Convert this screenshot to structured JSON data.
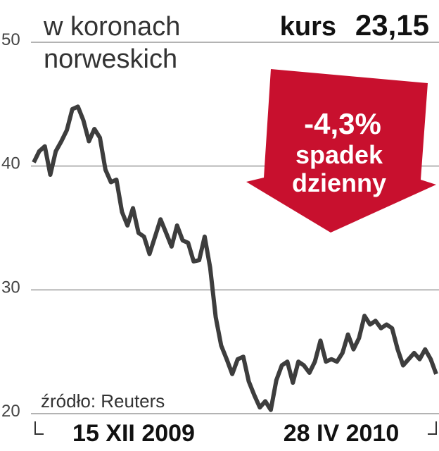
{
  "chart_data": {
    "type": "line",
    "title_lines": [
      "w koronach",
      "norweskich"
    ],
    "price_label": "kurs",
    "price": "23,15",
    "change": "-4,3%",
    "change_text": [
      "spadek",
      "dzienny"
    ],
    "source": "źródło: Reuters",
    "x_range_labels": [
      "15 XII 2009",
      "28 IV 2010"
    ],
    "series": [
      {
        "color": "#3d3d3d",
        "values": [
          40.3,
          41.2,
          41.6,
          39.3,
          41.2,
          42.0,
          42.9,
          44.6,
          44.8,
          43.7,
          42.0,
          43.0,
          42.3,
          39.7,
          38.7,
          38.9,
          36.3,
          35.2,
          36.6,
          34.6,
          34.3,
          32.9,
          34.3,
          35.7,
          34.6,
          33.5,
          35.2,
          34.0,
          33.8,
          32.3,
          32.4,
          34.3,
          31.8,
          27.8,
          25.5,
          24.4,
          23.2,
          24.4,
          24.6,
          22.6,
          21.5,
          20.5,
          21.0,
          20.3,
          22.7,
          23.9,
          24.2,
          22.5,
          24.2,
          23.9,
          23.3,
          24.2,
          25.9,
          24.2,
          24.4,
          24.2,
          24.9,
          26.4,
          25.2,
          26.1,
          27.9,
          27.2,
          27.5,
          26.9,
          27.2,
          26.9,
          25.2,
          23.9,
          24.4,
          24.9,
          24.4,
          25.2,
          24.4,
          23.2
        ]
      }
    ],
    "ylim": [
      20,
      50
    ],
    "yticks": [
      20,
      30,
      40,
      50
    ],
    "grid": true,
    "arrow_color": "#c8102e"
  }
}
